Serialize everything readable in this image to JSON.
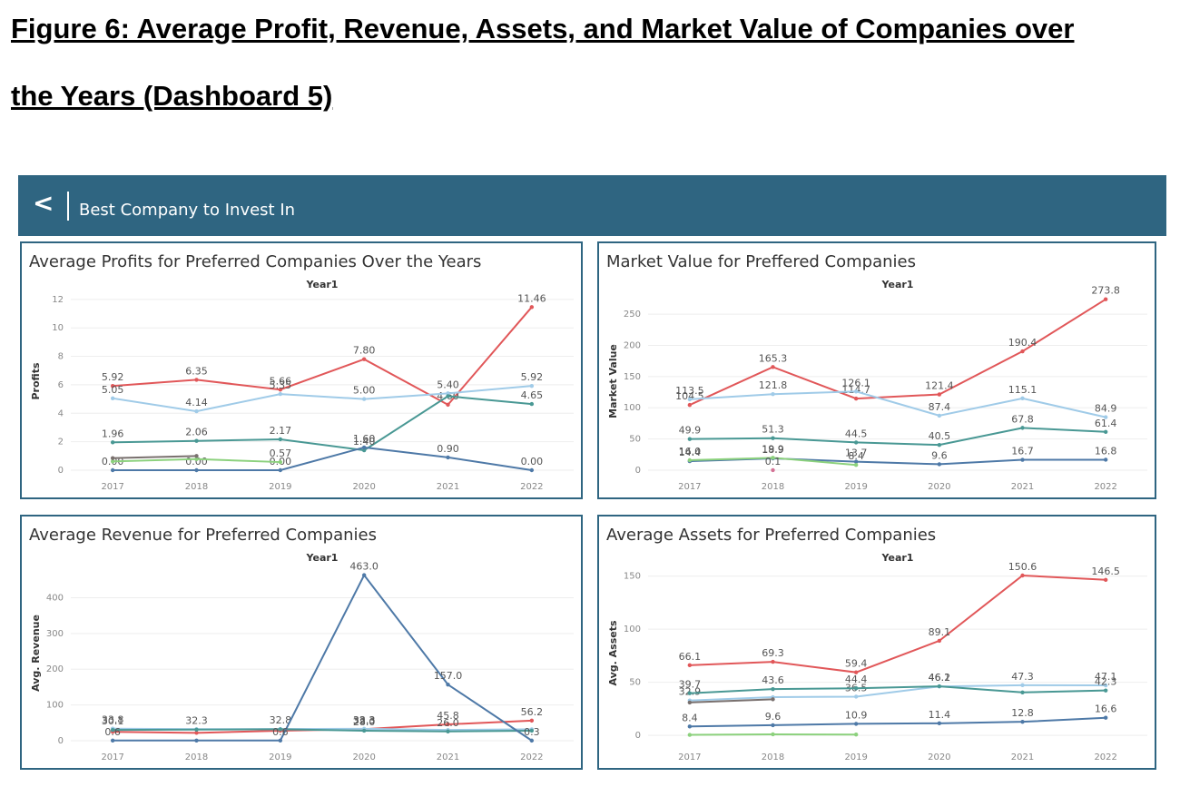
{
  "figure_title": [
    "Figure 6: Average Profit, Revenue, Assets, and Market Value of Companies over",
    "the Years (Dashboard 5)"
  ],
  "dashboard": {
    "back": "<",
    "title": "Best Company to Invest In"
  },
  "chart_data": [
    {
      "type": "line",
      "title": "Average Profits for Preferred Companies Over the Years",
      "x_label": "Year1",
      "y_label": "Profits",
      "categories": [
        "2017",
        "2018",
        "2019",
        "2020",
        "2021",
        "2022"
      ],
      "ylim": [
        0,
        12.5
      ],
      "yticks": [
        0,
        2,
        4,
        6,
        8,
        10,
        12
      ],
      "grid": true,
      "series": [
        {
          "color": "#e15759",
          "values": [
            5.92,
            6.35,
            5.66,
            7.8,
            4.6,
            11.46
          ],
          "value_labels": [
            "5.92",
            "6.35",
            "5.66",
            "7.80",
            "4.60",
            "11.46"
          ]
        },
        {
          "color": "#a0cbe8",
          "values": [
            5.05,
            4.14,
            5.35,
            5.0,
            5.4,
            5.92
          ],
          "value_labels": [
            "5.05",
            "4.14",
            "5.35",
            "5.00",
            "5.40",
            "5.92"
          ]
        },
        {
          "color": "#499894",
          "values": [
            1.96,
            2.06,
            2.17,
            1.4,
            5.2,
            4.65
          ],
          "value_labels": [
            "1.96",
            "2.06",
            "2.17",
            "1.40",
            null,
            "4.65"
          ]
        },
        {
          "color": "#4e79a7",
          "values": [
            0,
            0,
            0,
            1.6,
            0.9,
            0
          ],
          "value_labels": [
            "0.00",
            "0.00",
            "0.00",
            "1.60",
            "0.90",
            "0.00"
          ]
        },
        {
          "color": "#8cd17d",
          "values": [
            0.62,
            0.78,
            0.57,
            null,
            null,
            null
          ],
          "value_labels": [
            null,
            null,
            "0.57",
            null,
            null,
            null
          ]
        },
        {
          "color": "#79706e",
          "values": [
            0.85,
            1.0,
            null,
            null,
            null,
            null
          ],
          "value_labels": [
            null,
            null,
            null,
            null,
            null,
            null
          ]
        }
      ]
    },
    {
      "type": "line",
      "title": "Market Value for Preffered Companies",
      "x_label": "Year1",
      "y_label": "Market Value",
      "categories": [
        "2017",
        "2018",
        "2019",
        "2020",
        "2021",
        "2022"
      ],
      "ylim": [
        0,
        285
      ],
      "yticks": [
        0,
        50,
        100,
        150,
        200,
        250
      ],
      "grid": true,
      "series": [
        {
          "color": "#e15759",
          "values": [
            104.5,
            165.3,
            114.7,
            121.4,
            190.4,
            273.8
          ],
          "value_labels": [
            "104.5",
            "165.3",
            "114.7",
            "121.4",
            "190.4",
            "273.8"
          ]
        },
        {
          "color": "#a0cbe8",
          "values": [
            113.5,
            121.8,
            126.1,
            87.4,
            115.1,
            84.9
          ],
          "value_labels": [
            "113.5",
            "121.8",
            "126.1",
            "87.4",
            "115.1",
            "84.9"
          ]
        },
        {
          "color": "#499894",
          "values": [
            49.9,
            51.3,
            44.5,
            40.5,
            67.8,
            61.4
          ],
          "value_labels": [
            "49.9",
            "51.3",
            "44.5",
            "40.5",
            "67.8",
            "61.4"
          ]
        },
        {
          "color": "#4e79a7",
          "values": [
            14.4,
            18.9,
            13.7,
            9.6,
            16.7,
            16.8
          ],
          "value_labels": [
            "14.4",
            "18.9",
            "13.7",
            "9.6",
            "16.7",
            "16.8"
          ]
        },
        {
          "color": "#8cd17d",
          "values": [
            16.0,
            19.9,
            8.4,
            null,
            null,
            null
          ],
          "value_labels": [
            "16.0",
            "19.9",
            "8.4",
            null,
            null,
            null
          ]
        },
        {
          "color": "#d37295",
          "values": [
            null,
            0.1,
            null,
            null,
            null,
            null
          ],
          "value_labels": [
            null,
            "0.1",
            null,
            null,
            null,
            null
          ]
        }
      ]
    },
    {
      "type": "line",
      "title": "Average Revenue for Preferred Companies",
      "x_label": "Year1",
      "y_label": "Avg. Revenue",
      "categories": [
        "2017",
        "2018",
        "2019",
        "2020",
        "2021",
        "2022"
      ],
      "ylim": [
        0,
        490
      ],
      "yticks": [
        0,
        100,
        200,
        300,
        400
      ],
      "grid": true,
      "series": [
        {
          "color": "#e15759",
          "values": [
            25,
            22,
            28,
            32.3,
            45.8,
            56.2
          ],
          "value_labels": [
            null,
            null,
            null,
            "32.3",
            "45.8",
            "56.2"
          ]
        },
        {
          "color": "#a0cbe8",
          "values": [
            33.8,
            32.3,
            32.8,
            33.3,
            30,
            32
          ],
          "value_labels": [
            "33.8",
            "32.3",
            "32.8",
            "33.3",
            null,
            null
          ]
        },
        {
          "color": "#499894",
          "values": [
            30.1,
            31,
            32,
            28.0,
            26.0,
            28
          ],
          "value_labels": [
            "30.1",
            null,
            null,
            "28.0",
            "26.0",
            null
          ]
        },
        {
          "color": "#4e79a7",
          "values": [
            0.6,
            0.6,
            0.6,
            463.0,
            157.0,
            0.3
          ],
          "value_labels": [
            "0.6",
            null,
            "0.6",
            "463.0",
            "157.0",
            "0.3"
          ]
        }
      ]
    },
    {
      "type": "line",
      "title": "Average Assets for Preferred Companies",
      "x_label": "Year1",
      "y_label": "Avg. Assets",
      "categories": [
        "2017",
        "2018",
        "2019",
        "2020",
        "2021",
        "2022"
      ],
      "ylim": [
        -5,
        160
      ],
      "yticks": [
        0,
        50,
        100,
        150
      ],
      "grid": true,
      "series": [
        {
          "color": "#e15759",
          "values": [
            66.1,
            69.3,
            59.4,
            89.1,
            150.6,
            146.5
          ],
          "value_labels": [
            "66.1",
            "69.3",
            "59.4",
            "89.1",
            "150.6",
            "146.5"
          ]
        },
        {
          "color": "#a0cbe8",
          "values": [
            32.9,
            36,
            36.5,
            46.1,
            47.3,
            47.1
          ],
          "value_labels": [
            "32.9",
            null,
            "36.5",
            "46.1",
            "47.3",
            "47.1"
          ]
        },
        {
          "color": "#499894",
          "values": [
            39.7,
            43.6,
            44.4,
            46.2,
            40.5,
            42.3
          ],
          "value_labels": [
            "39.7",
            "43.6",
            "44.4",
            "46.2",
            null,
            "42.3"
          ]
        },
        {
          "color": "#4e79a7",
          "values": [
            8.4,
            9.6,
            10.9,
            11.4,
            12.8,
            16.6
          ],
          "value_labels": [
            "8.4",
            "9.6",
            "10.9",
            "11.4",
            "12.8",
            "16.6"
          ]
        },
        {
          "color": "#79706e",
          "values": [
            31,
            34,
            null,
            null,
            null,
            null
          ],
          "value_labels": [
            null,
            null,
            null,
            null,
            null,
            null
          ]
        },
        {
          "color": "#8cd17d",
          "values": [
            0.5,
            1,
            0.8,
            null,
            null,
            null
          ],
          "value_labels": [
            null,
            null,
            null,
            null,
            null,
            null
          ]
        }
      ]
    }
  ]
}
